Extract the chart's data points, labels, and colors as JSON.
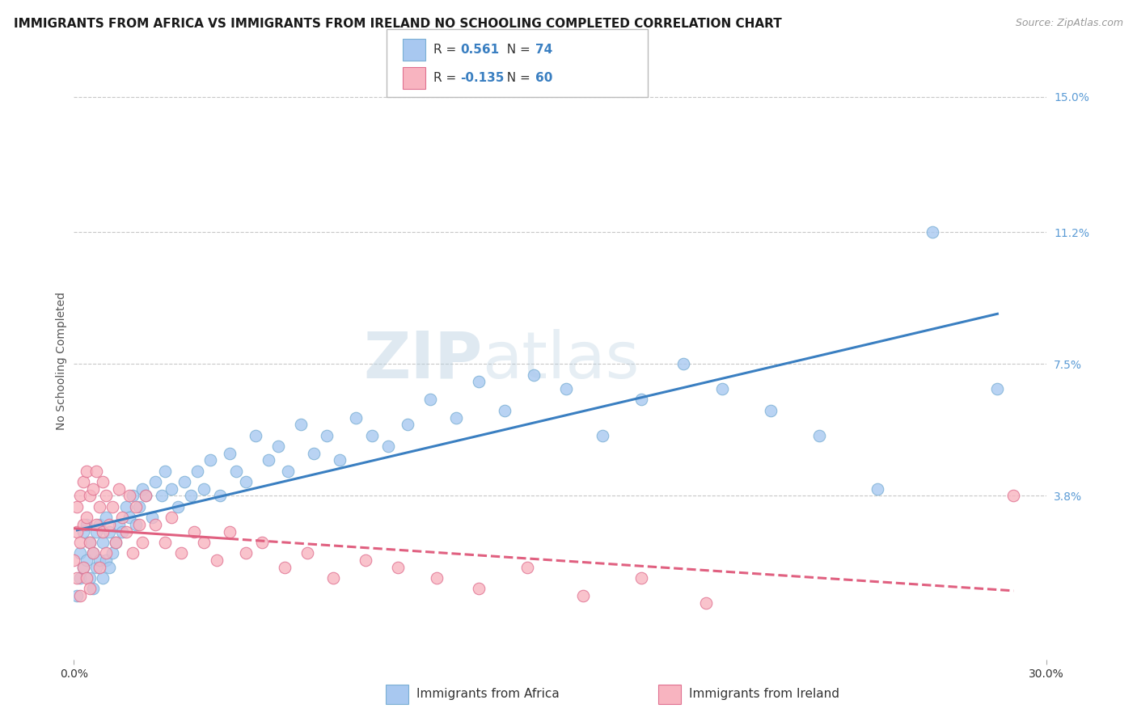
{
  "title": "IMMIGRANTS FROM AFRICA VS IMMIGRANTS FROM IRELAND NO SCHOOLING COMPLETED CORRELATION CHART",
  "source": "Source: ZipAtlas.com",
  "ylabel": "No Schooling Completed",
  "xlim": [
    0.0,
    0.3
  ],
  "ylim": [
    -0.008,
    0.16
  ],
  "ytick_right_vals": [
    0.038,
    0.075,
    0.112,
    0.15
  ],
  "ytick_right_labels": [
    "3.8%",
    "7.5%",
    "11.2%",
    "15.0%"
  ],
  "africa_color": "#a8c8f0",
  "africa_edge": "#7aafd4",
  "ireland_color": "#f8b4c0",
  "ireland_edge": "#e07090",
  "line_africa_color": "#3a7fc1",
  "line_ireland_color": "#e06080",
  "africa_R": 0.561,
  "africa_N": 74,
  "ireland_R": -0.135,
  "ireland_N": 60,
  "africa_scatter_x": [
    0.001,
    0.002,
    0.002,
    0.003,
    0.003,
    0.004,
    0.004,
    0.005,
    0.005,
    0.006,
    0.006,
    0.007,
    0.007,
    0.008,
    0.008,
    0.009,
    0.009,
    0.01,
    0.01,
    0.011,
    0.011,
    0.012,
    0.013,
    0.014,
    0.015,
    0.016,
    0.017,
    0.018,
    0.019,
    0.02,
    0.021,
    0.022,
    0.024,
    0.025,
    0.027,
    0.028,
    0.03,
    0.032,
    0.034,
    0.036,
    0.038,
    0.04,
    0.042,
    0.045,
    0.048,
    0.05,
    0.053,
    0.056,
    0.06,
    0.063,
    0.066,
    0.07,
    0.074,
    0.078,
    0.082,
    0.087,
    0.092,
    0.097,
    0.103,
    0.11,
    0.118,
    0.125,
    0.133,
    0.142,
    0.152,
    0.163,
    0.175,
    0.188,
    0.2,
    0.215,
    0.23,
    0.248,
    0.265,
    0.285
  ],
  "africa_scatter_y": [
    0.01,
    0.015,
    0.022,
    0.018,
    0.028,
    0.02,
    0.03,
    0.015,
    0.025,
    0.012,
    0.022,
    0.018,
    0.028,
    0.02,
    0.03,
    0.015,
    0.025,
    0.02,
    0.032,
    0.018,
    0.028,
    0.022,
    0.025,
    0.03,
    0.028,
    0.035,
    0.032,
    0.038,
    0.03,
    0.035,
    0.04,
    0.038,
    0.032,
    0.042,
    0.038,
    0.045,
    0.04,
    0.035,
    0.042,
    0.038,
    0.045,
    0.04,
    0.048,
    0.038,
    0.05,
    0.045,
    0.042,
    0.055,
    0.048,
    0.052,
    0.045,
    0.058,
    0.05,
    0.055,
    0.048,
    0.06,
    0.055,
    0.052,
    0.058,
    0.065,
    0.06,
    0.07,
    0.062,
    0.072,
    0.068,
    0.055,
    0.065,
    0.075,
    0.068,
    0.062,
    0.055,
    0.04,
    0.112,
    0.068
  ],
  "ireland_scatter_x": [
    0.0,
    0.001,
    0.001,
    0.001,
    0.002,
    0.002,
    0.002,
    0.003,
    0.003,
    0.003,
    0.004,
    0.004,
    0.004,
    0.005,
    0.005,
    0.005,
    0.006,
    0.006,
    0.007,
    0.007,
    0.008,
    0.008,
    0.009,
    0.009,
    0.01,
    0.01,
    0.011,
    0.012,
    0.013,
    0.014,
    0.015,
    0.016,
    0.017,
    0.018,
    0.019,
    0.02,
    0.021,
    0.022,
    0.025,
    0.028,
    0.03,
    0.033,
    0.037,
    0.04,
    0.044,
    0.048,
    0.053,
    0.058,
    0.065,
    0.072,
    0.08,
    0.09,
    0.1,
    0.112,
    0.125,
    0.14,
    0.157,
    0.175,
    0.195,
    0.29
  ],
  "ireland_scatter_y": [
    0.02,
    0.028,
    0.035,
    0.015,
    0.025,
    0.038,
    0.01,
    0.03,
    0.042,
    0.018,
    0.032,
    0.045,
    0.015,
    0.038,
    0.025,
    0.012,
    0.04,
    0.022,
    0.03,
    0.045,
    0.018,
    0.035,
    0.028,
    0.042,
    0.022,
    0.038,
    0.03,
    0.035,
    0.025,
    0.04,
    0.032,
    0.028,
    0.038,
    0.022,
    0.035,
    0.03,
    0.025,
    0.038,
    0.03,
    0.025,
    0.032,
    0.022,
    0.028,
    0.025,
    0.02,
    0.028,
    0.022,
    0.025,
    0.018,
    0.022,
    0.015,
    0.02,
    0.018,
    0.015,
    0.012,
    0.018,
    0.01,
    0.015,
    0.008,
    0.038
  ],
  "watermark_zip": "ZIP",
  "watermark_atlas": "atlas",
  "background_color": "#ffffff",
  "grid_color": "#c8c8c8",
  "title_fontsize": 11,
  "axis_label_fontsize": 10,
  "tick_fontsize": 10,
  "legend_africa_label": "Immigrants from Africa",
  "legend_ireland_label": "Immigrants from Ireland"
}
